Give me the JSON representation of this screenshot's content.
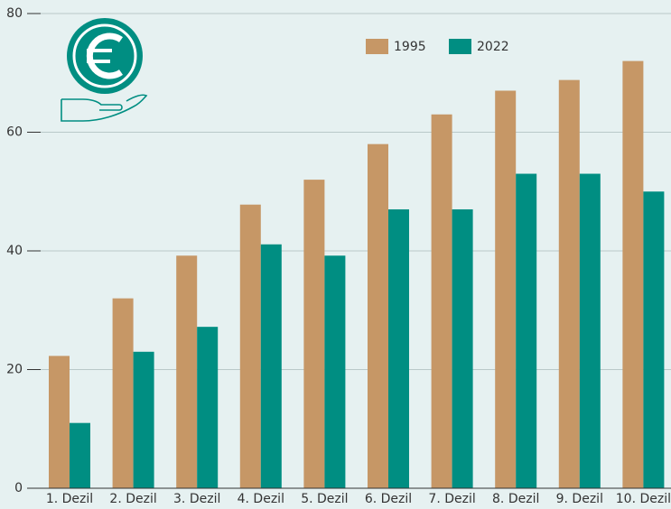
{
  "chart_data": {
    "type": "bar",
    "categories": [
      "1. Dezil",
      "2. Dezil",
      "3. Dezil",
      "4. Dezil",
      "5. Dezil",
      "6. Dezil",
      "7. Dezil",
      "8. Dezil",
      "9. Dezil",
      "10. Dezil"
    ],
    "series": [
      {
        "name": "1995",
        "color": "#c69766",
        "values": [
          22.3,
          32,
          39.2,
          47.8,
          52,
          58,
          63,
          67,
          68.8,
          72
        ]
      },
      {
        "name": "2022",
        "color": "#008e82",
        "values": [
          11,
          23,
          27.2,
          41.1,
          39.2,
          47,
          47,
          53,
          53,
          50
        ]
      }
    ],
    "ylim": [
      0,
      80
    ],
    "yticks": [
      0,
      20,
      40,
      60,
      80
    ],
    "grid": true,
    "legend": "top-right"
  }
}
